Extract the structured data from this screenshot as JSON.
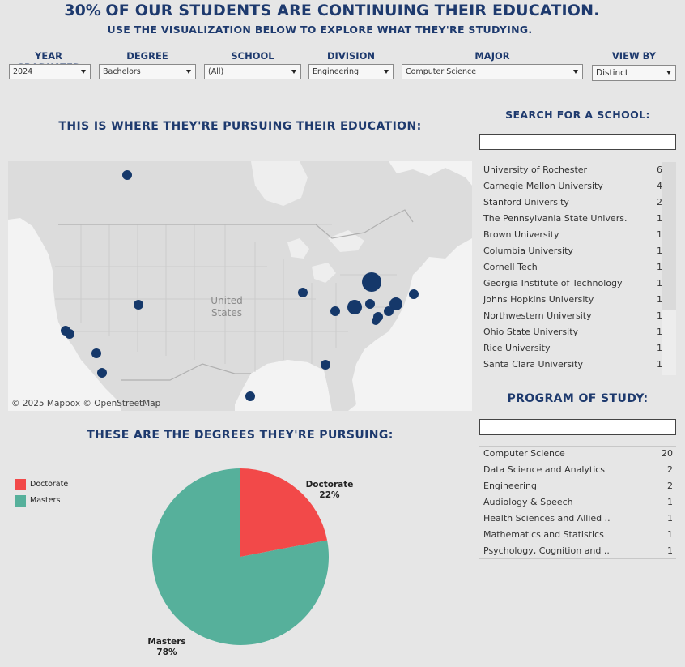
{
  "header": {
    "percent": "30%",
    "headline": "OF OUR STUDENTS ARE CONTINUING THEIR EDUCATION.",
    "subheadline": "USE THE VISUALIZATION BELOW TO EXPLORE WHAT THEY'RE STUDYING."
  },
  "filters": {
    "year": {
      "label": "YEAR GRADUATED",
      "value": "2024"
    },
    "degree": {
      "label": "DEGREE",
      "value": "Bachelors"
    },
    "school": {
      "label": "SCHOOL",
      "value": "(All)"
    },
    "division": {
      "label": "DIVISION",
      "value": "Engineering"
    },
    "major": {
      "label": "MAJOR",
      "value": "Computer Science"
    },
    "view_by": {
      "label": "VIEW BY",
      "value": "Distinct"
    }
  },
  "map_section": {
    "title": "THIS IS WHERE THEY'RE PURSUING THEIR EDUCATION:",
    "country_label_1": "United",
    "country_label_2": "States",
    "attribution": "© 2025 Mapbox  © OpenStreetMap",
    "colors": {
      "dot": "#15386a",
      "land": "#dcdcdc",
      "water": "#f2f2f2"
    }
  },
  "school_search": {
    "title": "SEARCH FOR A SCHOOL:",
    "query": "",
    "schools": [
      {
        "name": "University of Rochester",
        "count": "6"
      },
      {
        "name": "Carnegie Mellon University",
        "count": "4"
      },
      {
        "name": "Stanford University",
        "count": "2"
      },
      {
        "name": " The Pennsylvania State Univers.",
        "count": "1"
      },
      {
        "name": "Brown University",
        "count": "1"
      },
      {
        "name": "Columbia University",
        "count": "1"
      },
      {
        "name": "Cornell Tech",
        "count": "1"
      },
      {
        "name": "Georgia Institute of Technology",
        "count": "1"
      },
      {
        "name": "Johns Hopkins University",
        "count": "1"
      },
      {
        "name": "Northwestern University",
        "count": "1"
      },
      {
        "name": "Ohio State University",
        "count": "1"
      },
      {
        "name": "Rice University",
        "count": "1"
      },
      {
        "name": "Santa Clara University",
        "count": "1"
      }
    ]
  },
  "program_search": {
    "title": "PROGRAM OF STUDY:",
    "query": "",
    "programs": [
      {
        "name": "Computer Science",
        "count": "20"
      },
      {
        "name": "Data Science and Analytics",
        "count": "2"
      },
      {
        "name": "Engineering",
        "count": "2"
      },
      {
        "name": "Audiology & Speech",
        "count": "1"
      },
      {
        "name": "Health Sciences and Allied ..",
        "count": "1"
      },
      {
        "name": "Mathematics and Statistics",
        "count": "1"
      },
      {
        "name": "Psychology, Cognition and ..",
        "count": "1"
      }
    ]
  },
  "degree_section": {
    "title": "THESE ARE THE DEGREES THEY'RE PURSUING:"
  },
  "chart_data": {
    "type": "pie",
    "categories": [
      "Doctorate",
      "Masters"
    ],
    "values": [
      22,
      78
    ],
    "labels": [
      "22%",
      "78%"
    ],
    "colors": [
      "#f24949",
      "#56b09b"
    ],
    "legend": "left"
  }
}
